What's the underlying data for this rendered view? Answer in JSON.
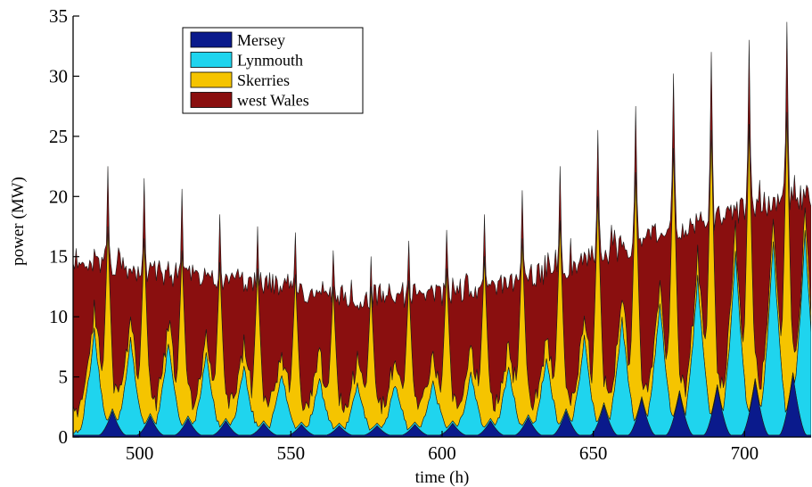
{
  "chart_data": {
    "type": "area",
    "stacked": true,
    "xlabel": "time (h)",
    "ylabel": "power (MW)",
    "xlim": [
      478,
      722
    ],
    "ylim": [
      0,
      35
    ],
    "xticks": [
      500,
      550,
      600,
      650,
      700
    ],
    "yticks": [
      0,
      5,
      10,
      15,
      20,
      25,
      30,
      35
    ],
    "grid": false,
    "legend": "top-left",
    "colors": {
      "Mersey": "#0a1a8c",
      "Lynmouth": "#1fd4ee",
      "Skerries": "#f5c400",
      "west Wales": "#8a0f0f"
    },
    "series": [
      {
        "name": "Mersey"
      },
      {
        "name": "Lynmouth"
      },
      {
        "name": "Skerries"
      },
      {
        "name": "west Wales"
      }
    ],
    "envelope": {
      "description_units": "hours / MW",
      "total_peaks": [
        [
          489.5,
          22.5
        ],
        [
          501.5,
          21.5
        ],
        [
          514,
          20
        ],
        [
          526.5,
          18.5
        ],
        [
          539,
          17.5
        ],
        [
          551.5,
          17
        ],
        [
          564,
          15.5
        ],
        [
          576.5,
          15
        ],
        [
          589,
          16.3
        ],
        [
          601.5,
          17.2
        ],
        [
          614,
          18.5
        ],
        [
          626.5,
          20.5
        ],
        [
          639,
          22.5
        ],
        [
          651.5,
          25.5
        ],
        [
          664,
          27.5
        ],
        [
          676.5,
          30.2
        ],
        [
          689,
          32
        ],
        [
          701.5,
          33
        ],
        [
          714,
          34.5
        ]
      ],
      "total_troughs": [
        [
          483.5,
          13.5
        ],
        [
          495.5,
          14
        ],
        [
          508,
          13.5
        ],
        [
          520.5,
          13
        ],
        [
          533,
          12.5
        ],
        [
          545.5,
          12
        ],
        [
          558,
          11.5
        ],
        [
          570.5,
          11
        ],
        [
          583,
          11
        ],
        [
          595.5,
          11.5
        ],
        [
          608,
          12
        ],
        [
          620.5,
          12.5
        ],
        [
          633,
          13.5
        ],
        [
          645.5,
          15
        ],
        [
          658,
          16
        ],
        [
          670.5,
          17
        ],
        [
          683,
          18
        ],
        [
          695.5,
          18.5
        ],
        [
          708,
          19
        ],
        [
          720,
          19
        ]
      ],
      "west_wales_level": [
        [
          478,
          15
        ],
        [
          510,
          13.5
        ],
        [
          540,
          13
        ],
        [
          570,
          11.5
        ],
        [
          600,
          12
        ],
        [
          625,
          13
        ],
        [
          650,
          15
        ],
        [
          680,
          17.5
        ],
        [
          700,
          19
        ],
        [
          722,
          20
        ]
      ],
      "skerries_peaks": [
        [
          489.5,
          17.5
        ],
        [
          501.5,
          16.5
        ],
        [
          514,
          15.5
        ],
        [
          526.5,
          14.5
        ],
        [
          539,
          14
        ],
        [
          551.5,
          13.5
        ],
        [
          564,
          12.5
        ],
        [
          576.5,
          12.5
        ],
        [
          589,
          13
        ],
        [
          601.5,
          14
        ],
        [
          614,
          15
        ],
        [
          626.5,
          16.5
        ],
        [
          639,
          18
        ],
        [
          651.5,
          20
        ],
        [
          664,
          22
        ],
        [
          676.5,
          24
        ],
        [
          689,
          25.5
        ],
        [
          701.5,
          26
        ],
        [
          714,
          27
        ]
      ],
      "lynmouth_peaks": [
        [
          485,
          8.5
        ],
        [
          497,
          8
        ],
        [
          509.5,
          7.5
        ],
        [
          522,
          6.5
        ],
        [
          534.5,
          5.5
        ],
        [
          547,
          5
        ],
        [
          559.5,
          4.5
        ],
        [
          572,
          4
        ],
        [
          584.5,
          4.2
        ],
        [
          597,
          4.5
        ],
        [
          609.5,
          5
        ],
        [
          622,
          5.5
        ],
        [
          634.5,
          6.5
        ],
        [
          647,
          8
        ],
        [
          659.5,
          9.5
        ],
        [
          672,
          11
        ],
        [
          684.5,
          13
        ],
        [
          697,
          15
        ],
        [
          709.5,
          16
        ],
        [
          720,
          17
        ]
      ],
      "mersey_peaks": [
        [
          491,
          2
        ],
        [
          503.5,
          1.6
        ],
        [
          516,
          1.4
        ],
        [
          528.5,
          1.2
        ],
        [
          541,
          1
        ],
        [
          553.5,
          0.9
        ],
        [
          566,
          0.8
        ],
        [
          578.5,
          0.8
        ],
        [
          591,
          0.9
        ],
        [
          603.5,
          1
        ],
        [
          616,
          1.2
        ],
        [
          628.5,
          1.5
        ],
        [
          641,
          2
        ],
        [
          653.5,
          2.5
        ],
        [
          666,
          3
        ],
        [
          678.5,
          3.5
        ],
        [
          691,
          4
        ],
        [
          703.5,
          4.5
        ],
        [
          716,
          5
        ]
      ]
    }
  }
}
